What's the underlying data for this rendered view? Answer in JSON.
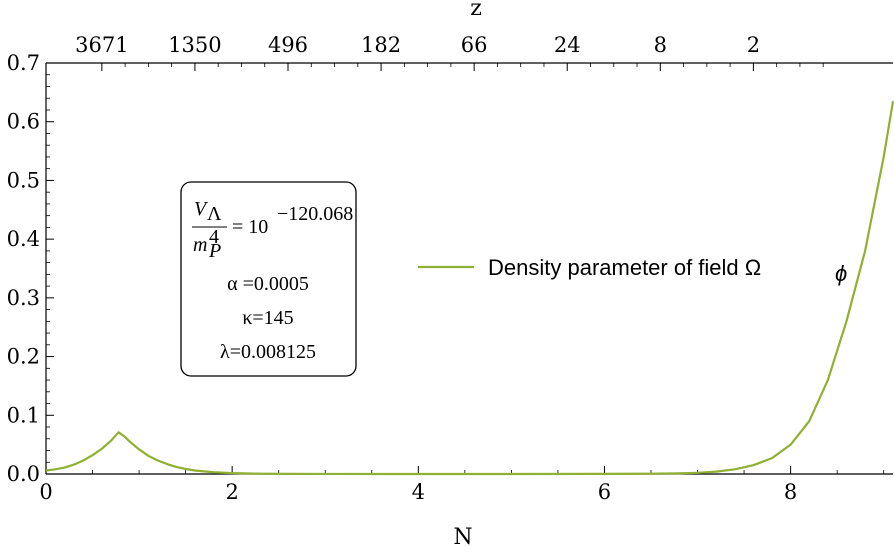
{
  "chart_data": {
    "type": "line",
    "xlabel": "N",
    "top_axis_label": "z",
    "xlim": [
      0,
      9.1
    ],
    "ylim": [
      0,
      0.7
    ],
    "x_ticks": [
      "0",
      "2",
      "4",
      "6",
      "8"
    ],
    "y_ticks": [
      "0.0",
      "0.1",
      "0.2",
      "0.3",
      "0.4",
      "0.5",
      "0.6",
      "0.7"
    ],
    "top_ticks": [
      {
        "N": 0.6,
        "label": "3671"
      },
      {
        "N": 1.6,
        "label": "1350"
      },
      {
        "N": 2.6,
        "label": "496"
      },
      {
        "N": 3.6,
        "label": "182"
      },
      {
        "N": 4.6,
        "label": "66"
      },
      {
        "N": 5.6,
        "label": "24"
      },
      {
        "N": 6.6,
        "label": "8"
      },
      {
        "N": 7.6,
        "label": "2"
      }
    ],
    "grid": false,
    "series": [
      {
        "name": "Density parameter of field Ω_ϕ",
        "color": "#8fb032",
        "x": [
          0,
          0.1,
          0.2,
          0.3,
          0.4,
          0.5,
          0.6,
          0.7,
          0.78,
          0.85,
          0.9,
          1.0,
          1.1,
          1.2,
          1.3,
          1.4,
          1.5,
          1.6,
          1.8,
          2.0,
          2.3,
          2.6,
          3.0,
          4.0,
          5.0,
          6.0,
          6.5,
          6.8,
          7.0,
          7.2,
          7.4,
          7.6,
          7.8,
          8.0,
          8.2,
          8.4,
          8.6,
          8.8,
          9.0,
          9.1
        ],
        "y": [
          0.006,
          0.008,
          0.011,
          0.016,
          0.023,
          0.032,
          0.043,
          0.057,
          0.071,
          0.063,
          0.055,
          0.042,
          0.031,
          0.023,
          0.017,
          0.012,
          0.0085,
          0.006,
          0.003,
          0.0015,
          0.0005,
          0.0002,
          0.0001,
          0.0,
          0.0,
          0.0002,
          0.0005,
          0.001,
          0.002,
          0.004,
          0.008,
          0.015,
          0.027,
          0.05,
          0.09,
          0.16,
          0.26,
          0.38,
          0.54,
          0.635
        ]
      }
    ],
    "legend": {
      "label": "Density parameter of field Ω",
      "subscript": "ϕ",
      "position": "right-center"
    },
    "parameters": {
      "v_num": "V",
      "v_num_sub": "Λ",
      "v_den": "m",
      "v_den_sup": "4",
      "v_den_sub": "P",
      "v_eq": "= 10",
      "v_exp": "−120.068",
      "alpha": "α =0.0005",
      "kappa": "κ=145",
      "lambda": "λ=0.008125"
    }
  }
}
